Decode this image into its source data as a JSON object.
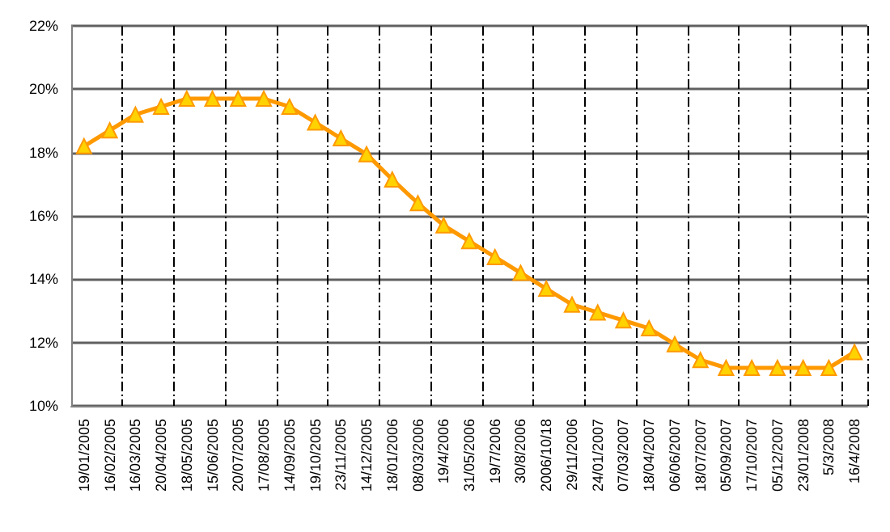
{
  "chart_data": {
    "type": "line",
    "categories": [
      "19/01/2005",
      "16/02/2005",
      "16/03/2005",
      "20/04/2005",
      "18/05/2005",
      "15/06/2005",
      "20/07/2005",
      "17/08/2005",
      "14/09/2005",
      "19/10/2005",
      "23/11/2005",
      "14/12/2005",
      "18/01/2006",
      "08/03/2006",
      "19/4/2006",
      "31/05/2006",
      "19/7/2006",
      "30/8/2006",
      "2006/10/18",
      "29/11/2006",
      "24/01/2007",
      "07/03/2007",
      "18/04/2007",
      "06/06/2007",
      "18/07/2007",
      "05/09/2007",
      "17/10/2007",
      "05/12/2007",
      "23/01/2008",
      "5/3/2008",
      "16/4/2008"
    ],
    "series": [
      {
        "color": "#ff9900",
        "values": [
          18.2,
          18.7,
          19.2,
          19.45,
          19.7,
          19.7,
          19.7,
          19.7,
          19.45,
          18.95,
          18.45,
          17.95,
          17.15,
          16.4,
          15.7,
          15.2,
          14.7,
          14.2,
          13.7,
          13.2,
          12.95,
          12.7,
          12.45,
          11.95,
          11.45,
          11.2,
          11.2,
          11.2,
          11.2,
          11.2,
          11.7
        ]
      }
    ],
    "ylim": [
      10,
      22
    ],
    "yticks": [
      {
        "value": 10,
        "label": "10%"
      },
      {
        "value": 12,
        "label": "12%"
      },
      {
        "value": 14,
        "label": "14%"
      },
      {
        "value": 16,
        "label": "16%"
      },
      {
        "value": 18,
        "label": "18%"
      },
      {
        "value": 20,
        "label": "20%"
      },
      {
        "value": 22,
        "label": "22%"
      }
    ],
    "grid": true,
    "marker": "triangle",
    "line_style": "solid"
  }
}
